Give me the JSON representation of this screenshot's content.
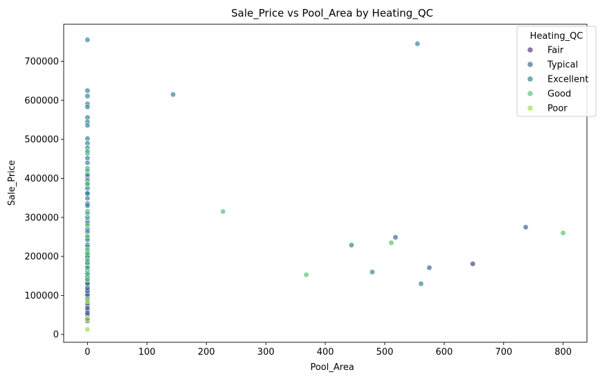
{
  "chart_data": {
    "type": "scatter",
    "title": "Sale_Price vs Pool_Area by Heating_QC",
    "xlabel": "Pool_Area",
    "ylabel": "Sale_Price",
    "xlim": [
      -40,
      840
    ],
    "ylim": [
      -20000,
      795000
    ],
    "xticks": [
      0,
      100,
      200,
      300,
      400,
      500,
      600,
      700,
      800
    ],
    "yticks": [
      0,
      100000,
      200000,
      300000,
      400000,
      500000,
      600000,
      700000
    ],
    "grid": false,
    "legend": {
      "title": "Heating_QC",
      "position": "top-right"
    },
    "series": [
      {
        "name": "Fair",
        "color": "#46337e",
        "x": [
          648,
          0,
          0,
          0,
          0,
          0,
          0,
          0,
          0,
          0,
          0
        ],
        "y": [
          181000,
          35000,
          50000,
          62000,
          75000,
          89000,
          97000,
          106000,
          116000,
          125000,
          138000
        ]
      },
      {
        "name": "Typical",
        "color": "#365c8d",
        "x": [
          518,
          575,
          737,
          0,
          0,
          0,
          0,
          0,
          0,
          0,
          0,
          0,
          0,
          0,
          0,
          0,
          0,
          0,
          0,
          0,
          0,
          0,
          0,
          0,
          0,
          0,
          0,
          0
        ],
        "y": [
          249000,
          171000,
          275000,
          40000,
          55000,
          68000,
          80000,
          92000,
          101000,
          111000,
          119000,
          128000,
          133000,
          142000,
          150000,
          157000,
          164000,
          176000,
          186000,
          196000,
          205000,
          230000,
          248000,
          270000,
          290000,
          335000,
          360000,
          405000
        ]
      },
      {
        "name": "Excellent",
        "color": "#277f8e",
        "x": [
          144,
          444,
          479,
          555,
          561,
          0,
          0,
          0,
          0,
          0,
          0,
          0,
          0,
          0,
          0,
          0,
          0,
          0,
          0,
          0,
          0,
          0,
          0,
          0,
          0,
          0,
          0,
          0,
          0,
          0,
          0,
          0,
          0,
          0,
          0,
          0,
          0,
          0,
          0
        ],
        "y": [
          615000,
          229000,
          160000,
          745000,
          130000,
          755000,
          625000,
          611000,
          591000,
          583000,
          556000,
          545000,
          536000,
          502000,
          490000,
          478000,
          465000,
          452000,
          440000,
          425000,
          410000,
          395000,
          385000,
          375000,
          362000,
          349000,
          330000,
          315000,
          300000,
          285000,
          263000,
          243000,
          225000,
          212000,
          200000,
          183000,
          170000,
          147000,
          131000
        ]
      },
      {
        "name": "Good",
        "color": "#4ac16d",
        "x": [
          228,
          368,
          511,
          800,
          0,
          0,
          0,
          0,
          0,
          0,
          0,
          0,
          0,
          0,
          0,
          0,
          0
        ],
        "y": [
          315000,
          153000,
          235000,
          260000,
          90000,
          140000,
          155000,
          172000,
          190000,
          208000,
          218000,
          252000,
          280000,
          310000,
          386000,
          420000,
          470000
        ]
      },
      {
        "name": "Poor",
        "color": "#a0da39",
        "x": [
          0,
          0,
          0
        ],
        "y": [
          13000,
          39000,
          85000
        ]
      }
    ]
  }
}
